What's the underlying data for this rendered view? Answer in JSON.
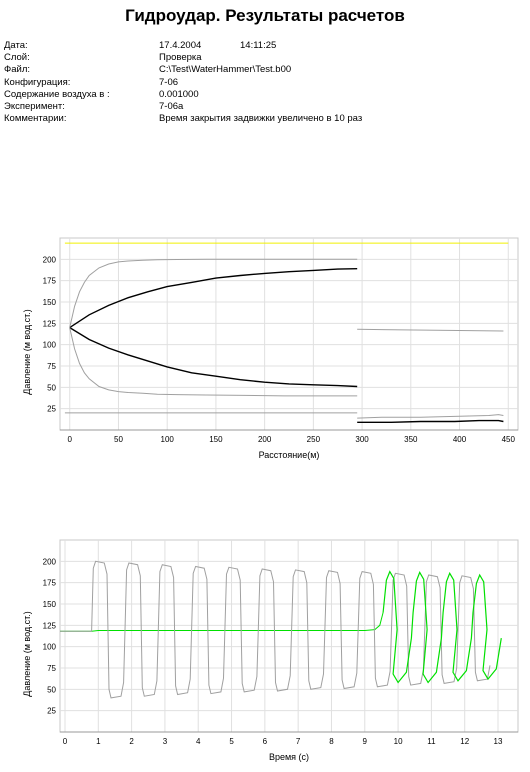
{
  "title": "Гидроудар. Результаты расчетов",
  "info": [
    {
      "label": "Дата:",
      "value": "17.4.2004",
      "extra": "14:11:25"
    },
    {
      "label": "Слой:",
      "value": "Проверка"
    },
    {
      "label": "Файл:",
      "value": "C:\\Test\\WaterHammer\\Test.b00"
    },
    {
      "label": "Конфигурация:",
      "value": "7-06"
    },
    {
      "label": "Содержание воздуха в :",
      "value": "0.001000"
    },
    {
      "label": "Эксперимент:",
      "value": "7-06a"
    },
    {
      "label": "Комментарии:",
      "value": "Время закрытия задвижки увеличено в 10 раз"
    }
  ],
  "chart_data": [
    {
      "type": "line",
      "xlabel": "Расстояние(м)",
      "ylabel": "Давление (м вод.ст.)",
      "xlim": [
        -10,
        460
      ],
      "ylim": [
        0,
        225
      ],
      "xticks": [
        "0",
        "50",
        "100",
        "150",
        "200",
        "250",
        "300",
        "350",
        "400",
        "450"
      ],
      "yticks": [
        "25",
        "50",
        "75",
        "100",
        "125",
        "150",
        "175",
        "200"
      ],
      "grid": true,
      "colors": {
        "yellow": "#f0f000",
        "black": "#000000",
        "gray": "#a0a0a0"
      },
      "series": [
        {
          "x": [
            -5,
            450
          ],
          "y": [
            219,
            219
          ],
          "color": "yellow"
        },
        {
          "x": [
            0,
            20,
            40,
            60,
            80,
            100,
            125,
            150,
            175,
            200,
            225,
            250,
            275,
            295
          ],
          "y": [
            120,
            135,
            146,
            155,
            162,
            168,
            173,
            178,
            181,
            183.5,
            185.5,
            187,
            188.5,
            189
          ],
          "color": "black"
        },
        {
          "x": [
            0,
            20,
            40,
            60,
            80,
            100,
            125,
            150,
            175,
            200,
            225,
            250,
            275,
            295
          ],
          "y": [
            120,
            106,
            96,
            88,
            81,
            74,
            67,
            63,
            59,
            56,
            54,
            53,
            52,
            51
          ],
          "color": "black"
        },
        {
          "x": [
            0,
            5,
            10,
            15,
            20,
            30,
            40,
            50,
            60,
            75,
            90,
            110,
            140,
            180,
            220,
            260,
            295
          ],
          "y": [
            120,
            145,
            162,
            173,
            181,
            190,
            194.5,
            197,
            198,
            199,
            199.5,
            199.8,
            200,
            200,
            200,
            200,
            200
          ],
          "color": "gray"
        },
        {
          "x": [
            0,
            5,
            10,
            15,
            20,
            30,
            40,
            50,
            60,
            75,
            90,
            110,
            140,
            180,
            220,
            260,
            295
          ],
          "y": [
            120,
            95,
            78,
            67,
            60,
            51,
            47,
            45,
            44,
            43,
            42,
            41.5,
            41,
            40.5,
            40,
            40,
            40
          ],
          "color": "gray"
        },
        {
          "x": [
            295,
            445
          ],
          "y": [
            118,
            116
          ],
          "color": "gray"
        },
        {
          "x": [
            -5,
            295
          ],
          "y": [
            20,
            20
          ],
          "color": "gray"
        },
        {
          "x": [
            295,
            320,
            360,
            400,
            430,
            440,
            445
          ],
          "y": [
            14,
            15,
            15,
            16,
            17,
            18,
            17
          ],
          "color": "gray"
        },
        {
          "x": [
            295,
            330,
            360,
            395,
            420,
            440,
            445
          ],
          "y": [
            9,
            9,
            10,
            10,
            11,
            11,
            10
          ],
          "color": "black"
        }
      ]
    },
    {
      "type": "line",
      "xlabel": "Время (с)",
      "ylabel": "Давление (м вод.ст.)",
      "xlim": [
        -0.15,
        13.6
      ],
      "ylim": [
        0,
        225
      ],
      "xticks": [
        "0",
        "1",
        "2",
        "3",
        "4",
        "5",
        "6",
        "7",
        "8",
        "9",
        "10",
        "11",
        "12",
        "13"
      ],
      "yticks": [
        "25",
        "50",
        "75",
        "100",
        "125",
        "150",
        "175",
        "200"
      ],
      "grid": true,
      "colors": {
        "green": "#00e000",
        "gray": "#a0a0a0"
      },
      "oscillation": {
        "color": "gray",
        "start_x": 0.8,
        "period": 1.0,
        "cycles": 12,
        "baseline": 118,
        "peaks": [
          200,
          198,
          196,
          194,
          193,
          191,
          190,
          189,
          188,
          186,
          184,
          183
        ],
        "troughs": [
          40,
          42,
          44,
          45,
          47,
          48,
          50,
          51,
          53,
          55,
          57,
          60
        ]
      },
      "series": [
        {
          "x": [
            -0.15,
            0.8,
            1.0,
            9.0,
            9.3,
            9.45,
            9.55
          ],
          "y": [
            118,
            118,
            119,
            119,
            120,
            125,
            140
          ],
          "color": "green"
        }
      ],
      "green_waves": {
        "color": "green",
        "start_x": 9.55,
        "period": 0.9,
        "cycles": 4,
        "peaks": [
          188,
          187,
          186,
          184
        ],
        "troughs": [
          58,
          58,
          60,
          62
        ]
      }
    }
  ]
}
